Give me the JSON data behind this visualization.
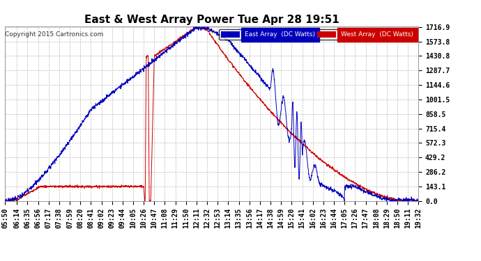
{
  "title": "East & West Array Power Tue Apr 28 19:51",
  "copyright": "Copyright 2015 Cartronics.com",
  "y_max": 1716.9,
  "y_ticks": [
    0.0,
    143.1,
    286.2,
    429.2,
    572.3,
    715.4,
    858.5,
    1001.5,
    1144.6,
    1287.7,
    1430.8,
    1573.8,
    1716.9
  ],
  "east_color": "#0000bb",
  "west_color": "#cc0000",
  "legend_east_label": "East Array  (DC Watts)",
  "legend_west_label": "West Array  (DC Watts)",
  "background_color": "#ffffff",
  "grid_color": "#bbbbbb",
  "title_fontsize": 11,
  "tick_label_fontsize": 7,
  "x_tick_labels": [
    "05:50",
    "06:14",
    "06:35",
    "06:56",
    "07:17",
    "07:38",
    "07:59",
    "08:20",
    "08:41",
    "09:02",
    "09:23",
    "09:44",
    "10:05",
    "10:26",
    "10:47",
    "11:08",
    "11:29",
    "11:50",
    "12:11",
    "12:32",
    "12:53",
    "13:14",
    "13:35",
    "13:56",
    "14:17",
    "14:38",
    "14:59",
    "15:20",
    "15:41",
    "16:02",
    "16:23",
    "16:44",
    "17:05",
    "17:26",
    "17:47",
    "18:08",
    "18:29",
    "18:50",
    "19:11",
    "19:32"
  ]
}
